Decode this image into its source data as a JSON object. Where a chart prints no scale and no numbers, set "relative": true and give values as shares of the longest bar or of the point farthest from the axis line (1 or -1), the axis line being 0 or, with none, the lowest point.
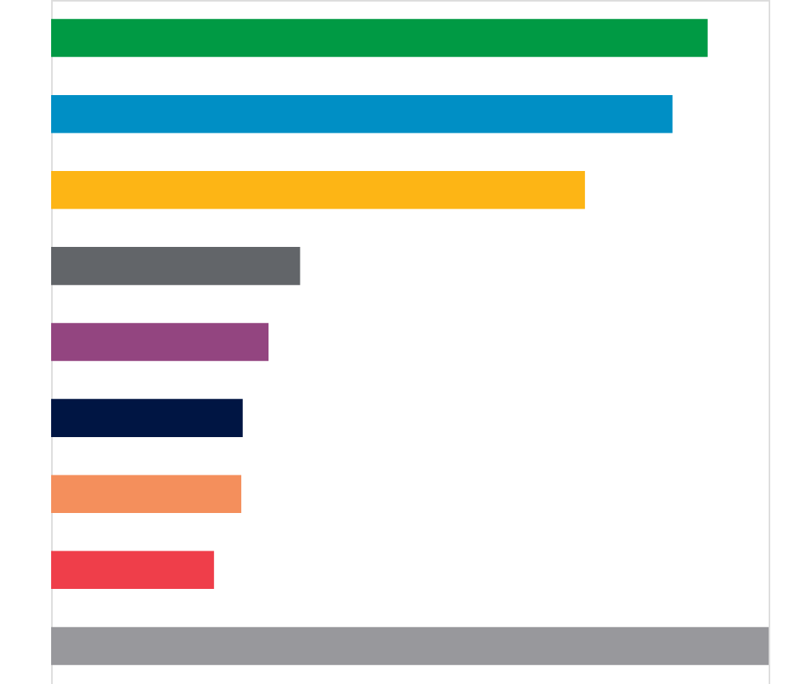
{
  "chart_data": {
    "type": "bar",
    "orientation": "horizontal",
    "relative": true,
    "categories": [
      null,
      null,
      null,
      null,
      null,
      null,
      null,
      null,
      null
    ],
    "values": [
      0.915,
      0.866,
      0.744,
      0.347,
      0.303,
      0.267,
      0.265,
      0.227,
      1
    ],
    "colors": [
      "#009a44",
      "#008fc5",
      "#fdb515",
      "#626569",
      "#934580",
      "#001543",
      "#f48f5c",
      "#ef3e4a",
      "#98989c"
    ]
  }
}
